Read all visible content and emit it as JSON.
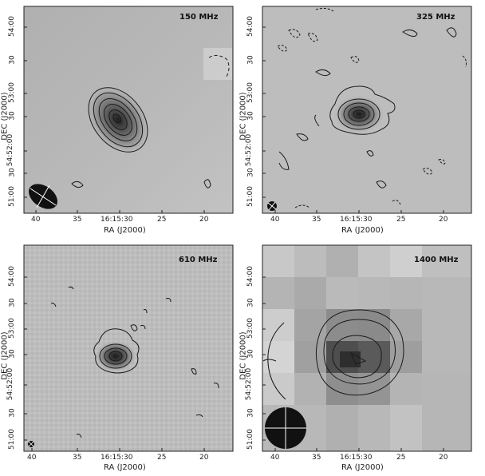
{
  "panels": [
    {
      "frequency": "150 MHz",
      "ytick_labels": [
        "54:00",
        "30",
        "53:00",
        "30",
        "54:52:00",
        "30",
        "51:00"
      ],
      "xtick_labels": [
        "40",
        "35",
        "16:15:30",
        "25",
        "20"
      ],
      "xlabel": "RA (J2000)",
      "ylabel": "DEC (J2000)"
    },
    {
      "frequency": "325 MHz",
      "ytick_labels": [
        "54:00",
        "30",
        "53:00",
        "30",
        "54:52:00",
        "30",
        "51:00"
      ],
      "xtick_labels": [
        "40",
        "35",
        "16:15:30",
        "25",
        "20"
      ],
      "xlabel": "RA (J2000)",
      "ylabel": "DEC (J2000)"
    },
    {
      "frequency": "610 MHz",
      "ytick_labels": [
        "54:00",
        "30",
        "53:00",
        "30",
        "54:52:00",
        "30",
        "51:00"
      ],
      "xtick_labels": [
        "40",
        "35",
        "16:15:30",
        "25",
        "20"
      ],
      "xlabel": "RA (J2000)",
      "ylabel": "DEC (J2000)"
    },
    {
      "frequency": "1400 MHz",
      "ytick_labels": [
        "54:00",
        "30",
        "53:00",
        "30",
        "54:52:00",
        "30",
        "51:00"
      ],
      "xtick_labels": [
        "40",
        "35",
        "16:15:30",
        "25",
        "20"
      ],
      "xlabel": "RA (J2000)",
      "ylabel": "DEC (J2000)"
    }
  ],
  "colors": {
    "background_gray": "#bdbdbd",
    "source_dark": "#262626",
    "contour": "#1a1a1a",
    "beam_fill": "#111111"
  }
}
